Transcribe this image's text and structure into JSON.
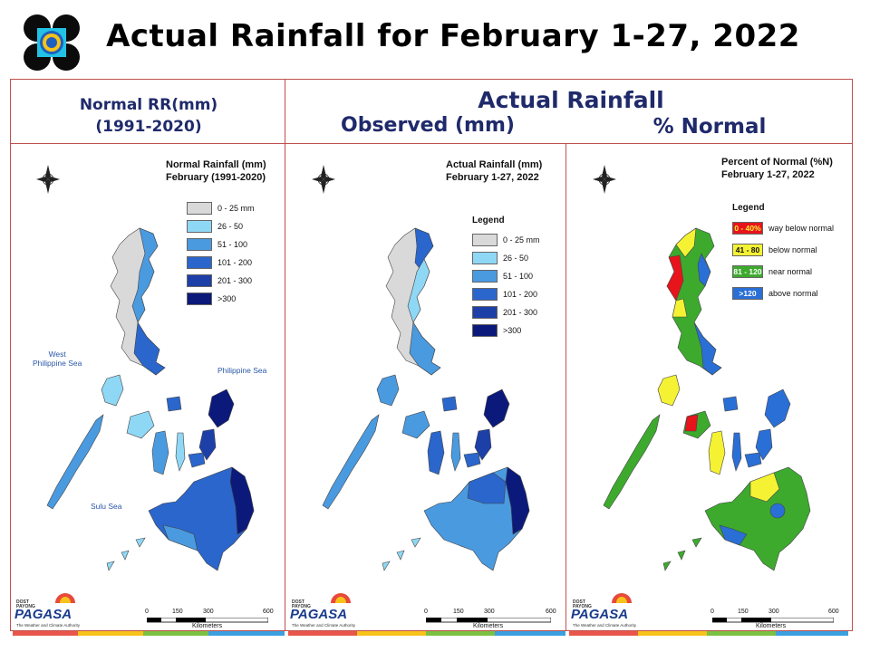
{
  "title": "Actual Rainfall for February 1-27, 2022",
  "headers": {
    "normal_line1": "Normal RR(mm)",
    "normal_line2": "(1991-2020)",
    "actual": "Actual Rainfall",
    "observed": "Observed (mm)",
    "percent": "% Normal"
  },
  "panels": [
    {
      "title_line1": "Normal Rainfall (mm)",
      "title_line2": "February (1991-2020)",
      "legend_title": "",
      "legend": [
        {
          "label": "0 - 25 mm",
          "color": "#d9d9d9"
        },
        {
          "label": "26 - 50",
          "color": "#8fd8f5"
        },
        {
          "label": "51 - 100",
          "color": "#4a9ae0"
        },
        {
          "label": "101 - 200",
          "color": "#2a66cc"
        },
        {
          "label": "201 - 300",
          "color": "#1d3fa8"
        },
        {
          "label": ">300",
          "color": "#0b1a7a"
        }
      ],
      "sea_labels": {
        "west": "West\nPhilippine Sea",
        "east": "Philippine Sea",
        "sulu": "Sulu Sea"
      }
    },
    {
      "title_line1": "Actual Rainfall (mm)",
      "title_line2": "February 1-27, 2022",
      "legend_title": "Legend",
      "legend": [
        {
          "label": "0 - 25 mm",
          "color": "#d9d9d9"
        },
        {
          "label": "26 - 50",
          "color": "#8fd8f5"
        },
        {
          "label": "51 - 100",
          "color": "#4a9ae0"
        },
        {
          "label": "101 - 200",
          "color": "#2a66cc"
        },
        {
          "label": "201 - 300",
          "color": "#1d3fa8"
        },
        {
          "label": ">300",
          "color": "#0b1a7a"
        }
      ]
    },
    {
      "title_line1": "Percent of Normal (%N)",
      "title_line2": "February 1-27, 2022",
      "legend_title": "Legend",
      "legend": [
        {
          "swatch": "0 - 40%",
          "label": "way below normal",
          "color": "#e8141b"
        },
        {
          "swatch": "41 - 80",
          "label": "below normal",
          "color": "#f5f233"
        },
        {
          "swatch": "81 - 120",
          "label": "near normal",
          "color": "#3daa2e"
        },
        {
          "swatch": ">120",
          "label": "above normal",
          "color": "#2a6fd6"
        }
      ]
    }
  ],
  "scale_bar": {
    "ticks": [
      "0",
      "150",
      "300",
      "600"
    ],
    "unit": "Kilometers"
  },
  "compass": {
    "n": "N",
    "s": "S",
    "e": "E",
    "w": "W"
  },
  "branding": {
    "top": "DOST\nPAYONG",
    "name": "PAGASA",
    "tagline": "The Weather and Climate Authority"
  },
  "colors": {
    "title": "#000000",
    "header": "#1f2a6b",
    "frame": "#c0504d"
  }
}
